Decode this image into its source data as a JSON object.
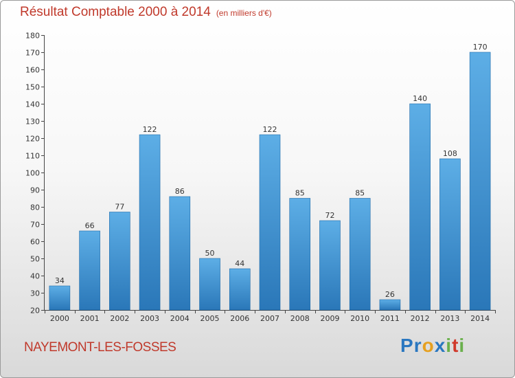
{
  "title": "Résultat Comptable 2000 à 2014",
  "subtitle": "(en milliers d'€)",
  "commune": "NAYEMONT-LES-FOSSES",
  "logo": {
    "letters": [
      {
        "char": "P",
        "color": "#2a77c0"
      },
      {
        "char": "r",
        "color": "#2a77c0"
      },
      {
        "char": "o",
        "color": "#e6a020"
      },
      {
        "char": "x",
        "color": "#2a77c0"
      },
      {
        "char": "i",
        "color": "#6ab04c"
      },
      {
        "char": "t",
        "color": "#d0392b"
      },
      {
        "char": "i",
        "color": "#6ab04c"
      }
    ]
  },
  "colors": {
    "title": "#c0392b",
    "bar_top": "#5daee6",
    "bar_bottom": "#2a77b8",
    "bar_edge": "#1f6aa8",
    "grid": "#dddddd",
    "axis": "#444444"
  },
  "chart_data": {
    "type": "bar",
    "title": "Résultat Comptable 2000 à 2014",
    "subtitle": "(en milliers d'€)",
    "xlabel": "",
    "ylabel": "",
    "categories": [
      "2000",
      "2001",
      "2002",
      "2003",
      "2004",
      "2005",
      "2006",
      "2007",
      "2008",
      "2009",
      "2010",
      "2011",
      "2012",
      "2013",
      "2014"
    ],
    "values": [
      34,
      66,
      77,
      122,
      86,
      50,
      44,
      122,
      85,
      72,
      85,
      26,
      140,
      108,
      170
    ],
    "ylim": [
      20,
      180
    ],
    "yticks": [
      20,
      30,
      40,
      50,
      60,
      70,
      80,
      90,
      100,
      110,
      120,
      130,
      140,
      150,
      160,
      170,
      180
    ],
    "grid": false,
    "legend": "none"
  }
}
